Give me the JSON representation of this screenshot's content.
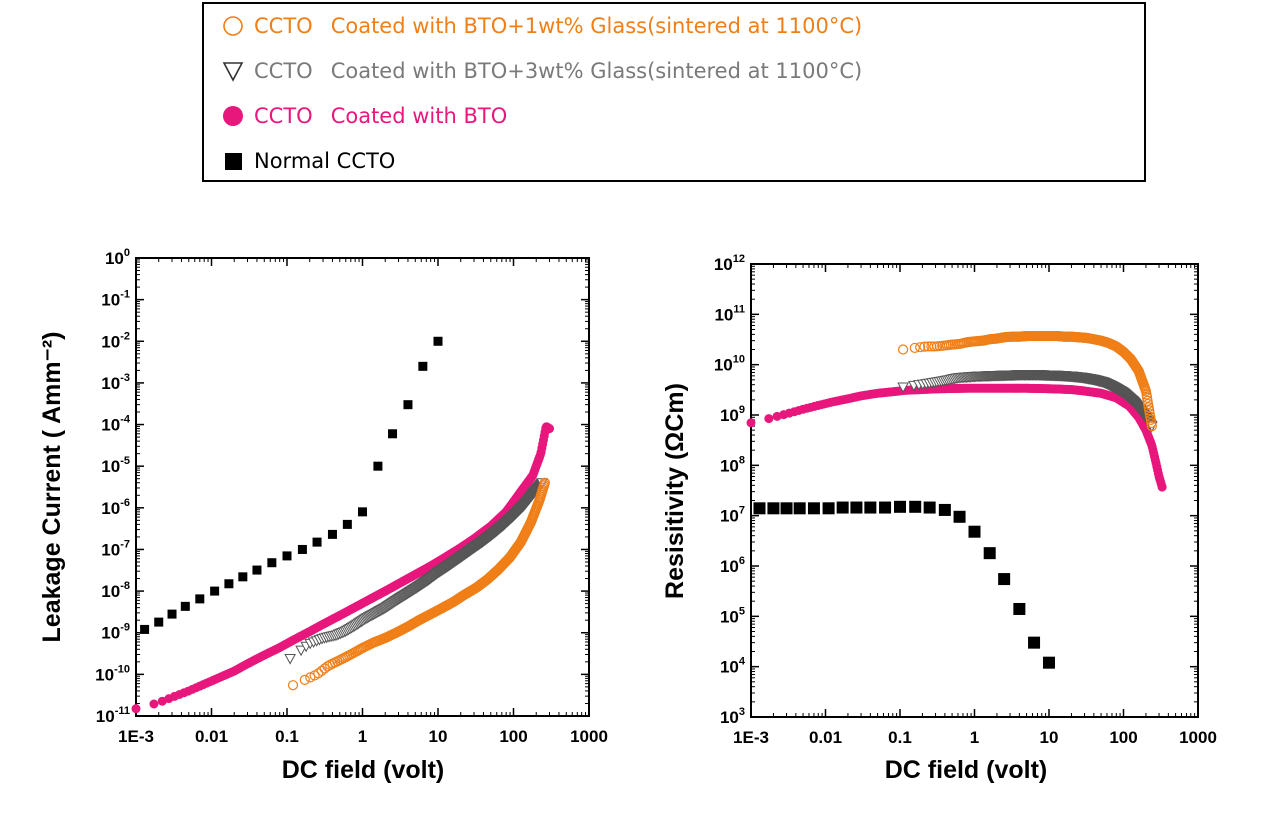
{
  "legend": {
    "items": [
      {
        "name": "CCTO",
        "desc": "Coated with  BTO+1wt% Glass(sintered at 1100°C)",
        "color": "#f07f18",
        "marker": "open-circle"
      },
      {
        "name": "CCTO",
        "desc": "Coated with  BTO+3wt% Glass(sintered at 1100°C)",
        "color": "#7a7a7a",
        "marker": "open-triangle-down"
      },
      {
        "name": "CCTO",
        "desc": "Coated with  BTO",
        "color": "#e8177c",
        "marker": "filled-circle"
      },
      {
        "name": "Normal CCTO",
        "desc": "",
        "color": "#000000",
        "marker": "filled-square"
      }
    ]
  },
  "chart_data": [
    {
      "type": "scatter",
      "xlabel": "DC field (volt)",
      "ylabel": "Leakage Current ( Amm⁻²)",
      "xscale": "log",
      "yscale": "log",
      "xlim": [
        0.001,
        1000
      ],
      "ylim": [
        1e-11,
        1
      ],
      "xtick_labels": [
        "1E-3",
        "0.01",
        "0.1",
        "1",
        "10",
        "100",
        "1000"
      ],
      "ytick_exponents": [
        "0",
        "-1",
        "-2",
        "-3",
        "-4",
        "-5",
        "-6",
        "-7",
        "-8",
        "-9",
        "-10",
        "-11"
      ],
      "series": [
        {
          "name": "Normal CCTO",
          "x": [
            0.0013,
            0.002,
            0.003,
            0.0045,
            0.007,
            0.011,
            0.017,
            0.026,
            0.04,
            0.063,
            0.1,
            0.16,
            0.25,
            0.4,
            0.63,
            1,
            1.6,
            2.5,
            4,
            6.3,
            10
          ],
          "y": [
            1.2e-09,
            1.8e-09,
            2.8e-09,
            4.3e-09,
            6.5e-09,
            1e-08,
            1.5e-08,
            2.2e-08,
            3.2e-08,
            4.8e-08,
            7e-08,
            1e-07,
            1.5e-07,
            2.3e-07,
            4e-07,
            8e-07,
            1e-05,
            6e-05,
            0.0003,
            0.0025,
            0.01
          ]
        },
        {
          "name": "CCTO Coated with BTO",
          "x": [
            0.001,
            0.0015,
            0.002,
            0.003,
            0.005,
            0.008,
            0.012,
            0.02,
            0.03,
            0.05,
            0.08,
            0.12,
            0.2,
            0.3,
            0.5,
            0.8,
            1.2,
            2,
            3,
            5,
            8,
            12,
            20,
            30,
            50,
            80,
            120,
            180,
            230,
            270,
            300
          ],
          "y": [
            1.5e-11,
            1.8e-11,
            2.1e-11,
            2.8e-11,
            4e-11,
            5.8e-11,
            8e-11,
            1.2e-10,
            1.8e-10,
            2.9e-10,
            4.4e-10,
            6.6e-10,
            1.07e-09,
            1.6e-09,
            2.6e-09,
            4.1e-09,
            6.1e-09,
            1e-08,
            1.5e-08,
            2.5e-08,
            4e-08,
            6.2e-08,
            1.1e-07,
            1.8e-07,
            3.6e-07,
            8e-07,
            2.2e-06,
            6e-06,
            2e-05,
            9e-05,
            8e-05
          ]
        },
        {
          "name": "CCTO Coated with BTO+3wt% Glass",
          "x": [
            0.11,
            0.2,
            0.3,
            0.45,
            0.6,
            0.8,
            1.1,
            1.5,
            2,
            3,
            4,
            5.5,
            7.5,
            10,
            14,
            20,
            28,
            40,
            55,
            75,
            100,
            140,
            190,
            240
          ],
          "y": [
            2.4e-10,
            5.5e-10,
            7.4e-10,
            8.8e-10,
            1.1e-09,
            1.5e-09,
            2.2e-09,
            3e-09,
            4e-09,
            6.5e-09,
            9e-09,
            1.3e-08,
            1.9e-08,
            2.8e-08,
            4.2e-08,
            6.6e-08,
            1.02e-07,
            1.6e-07,
            2.5e-07,
            4e-07,
            6.5e-07,
            1.2e-06,
            2.4e-06,
            4e-06
          ]
        },
        {
          "name": "CCTO Coated with BTO+1wt% Glass",
          "x": [
            0.12,
            0.25,
            0.35,
            0.5,
            0.7,
            1,
            1.4,
            2,
            2.8,
            4,
            5.6,
            8,
            11,
            16,
            22,
            32,
            45,
            63,
            90,
            125,
            170,
            220,
            260
          ],
          "y": [
            5.5e-11,
            1e-10,
            1.6e-10,
            2.2e-10,
            3e-10,
            4.3e-10,
            5.8e-10,
            7.5e-10,
            1e-09,
            1.4e-09,
            2e-09,
            2.8e-09,
            3.8e-09,
            5.5e-09,
            8e-09,
            1.2e-08,
            1.9e-08,
            3.3e-08,
            6.5e-08,
            1.5e-07,
            4.5e-07,
            1.5e-06,
            4e-06
          ]
        }
      ]
    },
    {
      "type": "scatter",
      "xlabel": "DC field (volt)",
      "ylabel": "Resisitivity (ΩCm)",
      "xscale": "log",
      "yscale": "log",
      "xlim": [
        0.001,
        1000
      ],
      "ylim": [
        1000,
        1000000000000.0
      ],
      "xtick_labels": [
        "1E-3",
        "0.01",
        "0.1",
        "1",
        "10",
        "100",
        "1000"
      ],
      "ytick_exponents": [
        "12",
        "11",
        "10",
        "9",
        "8",
        "7",
        "6",
        "5",
        "4",
        "3"
      ],
      "series": [
        {
          "name": "Normal CCTO",
          "x": [
            0.0013,
            0.002,
            0.003,
            0.0045,
            0.007,
            0.011,
            0.017,
            0.026,
            0.04,
            0.063,
            0.1,
            0.16,
            0.25,
            0.4,
            0.63,
            1,
            1.6,
            2.5,
            4,
            6.3,
            10
          ],
          "y": [
            14000000.0,
            14000000.0,
            14000000.0,
            14000000.0,
            14000000.0,
            14000000.0,
            14500000.0,
            14500000.0,
            14500000.0,
            14500000.0,
            15000000.0,
            15000000.0,
            14500000.0,
            13000000.0,
            9500000.0,
            4800000.0,
            1800000.0,
            550000.0,
            140000.0,
            30000.0,
            12000.0
          ]
        },
        {
          "name": "CCTO Coated with BTO",
          "x": [
            0.001,
            0.0015,
            0.002,
            0.003,
            0.005,
            0.008,
            0.012,
            0.02,
            0.03,
            0.05,
            0.08,
            0.12,
            0.2,
            0.3,
            0.5,
            0.8,
            1.2,
            2,
            3,
            5,
            8,
            12,
            20,
            30,
            50,
            80,
            120,
            160,
            200,
            240,
            270,
            300,
            330
          ],
          "y": [
            700000000.0,
            800000000.0,
            900000000.0,
            1050000000.0,
            1300000000.0,
            1550000000.0,
            1800000000.0,
            2100000000.0,
            2400000000.0,
            2700000000.0,
            2900000000.0,
            3100000000.0,
            3200000000.0,
            3300000000.0,
            3350000000.0,
            3400000000.0,
            3400000000.0,
            3400000000.0,
            3400000000.0,
            3400000000.0,
            3350000000.0,
            3300000000.0,
            3200000000.0,
            3000000000.0,
            2700000000.0,
            2200000000.0,
            1500000000.0,
            900000000.0,
            500000000.0,
            250000000.0,
            120000000.0,
            60000000.0,
            37000000.0
          ]
        },
        {
          "name": "CCTO Coated with BTO+3wt% Glass",
          "x": [
            0.11,
            0.2,
            0.3,
            0.45,
            0.6,
            0.8,
            1.1,
            1.5,
            2,
            3,
            4,
            5.5,
            7.5,
            10,
            14,
            20,
            28,
            40,
            55,
            75,
            100,
            140,
            190,
            240
          ],
          "y": [
            3600000000.0,
            4100000000.0,
            4500000000.0,
            5000000000.0,
            5500000000.0,
            5700000000.0,
            5900000000.0,
            6000000000.0,
            6100000000.0,
            6200000000.0,
            6300000000.0,
            6300000000.0,
            6300000000.0,
            6200000000.0,
            6100000000.0,
            5900000000.0,
            5600000000.0,
            5100000000.0,
            4500000000.0,
            3600000000.0,
            2800000000.0,
            1800000000.0,
            1000000000.0,
            600000000.0
          ]
        },
        {
          "name": "CCTO Coated with BTO+1wt% Glass",
          "x": [
            0.11,
            0.22,
            0.3,
            0.4,
            0.5,
            0.65,
            0.8,
            1,
            1.3,
            1.6,
            2,
            2.5,
            3.2,
            4,
            5,
            6.5,
            8,
            10,
            13,
            16,
            20,
            25,
            32,
            40,
            50,
            63,
            80,
            100,
            125,
            160,
            200,
            240
          ],
          "y": [
            20000000000.0,
            23000000000.0,
            23000000000.0,
            24000000000.0,
            25000000000.0,
            26000000000.0,
            28000000000.0,
            29000000000.0,
            30000000000.0,
            32000000000.0,
            33000000000.0,
            35000000000.0,
            36000000000.0,
            36000000000.0,
            37000000000.0,
            37000000000.0,
            37000000000.0,
            37000000000.0,
            37000000000.0,
            36000000000.0,
            36000000000.0,
            35000000000.0,
            34000000000.0,
            32000000000.0,
            30000000000.0,
            27000000000.0,
            23000000000.0,
            18000000000.0,
            13000000000.0,
            7500000000.0,
            3000000000.0,
            600000000.0
          ]
        }
      ]
    }
  ]
}
